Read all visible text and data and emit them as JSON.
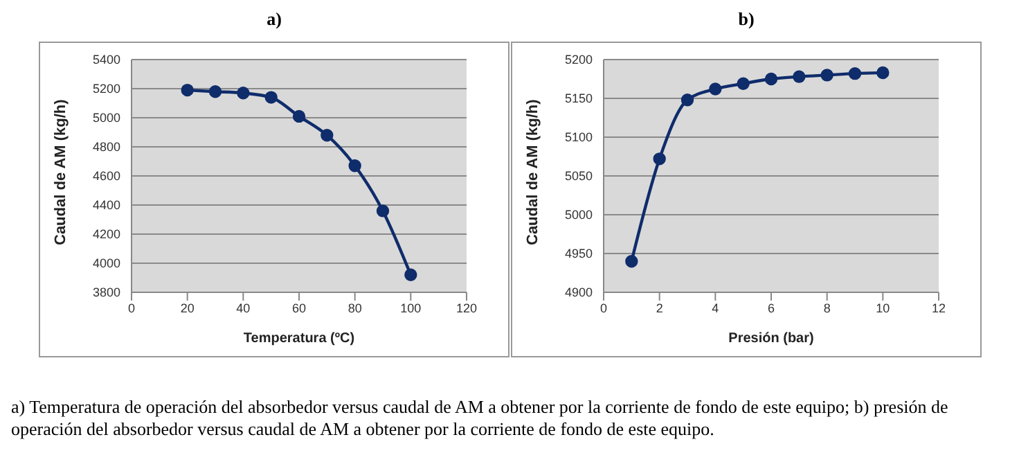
{
  "chart_data": [
    {
      "type": "line",
      "title": "a)",
      "xlabel": "Temperatura (ºC)",
      "ylabel": "Caudal de AM (kg/h)",
      "x": [
        20,
        30,
        40,
        50,
        60,
        70,
        80,
        90,
        100
      ],
      "series": [
        {
          "color": "#0f2c6b",
          "values": [
            5190,
            5180,
            5170,
            5140,
            5010,
            4880,
            4670,
            4360,
            3920
          ]
        }
      ],
      "xlim": [
        0,
        120
      ],
      "xticks": [
        0,
        20,
        40,
        60,
        80,
        100,
        120
      ],
      "ylim": [
        3800,
        5400
      ],
      "yticks": [
        3800,
        4000,
        4200,
        4400,
        4600,
        4800,
        5000,
        5200,
        5400
      ],
      "grid": "y",
      "marker": "circle",
      "line_style": "solid"
    },
    {
      "type": "line",
      "title": "b)",
      "xlabel": "Presión (bar)",
      "ylabel": "Caudal de AM (kg/h)",
      "x": [
        1,
        2,
        3,
        4,
        5,
        6,
        7,
        8,
        9,
        10
      ],
      "series": [
        {
          "color": "#0f2c6b",
          "values": [
            4940,
            5072,
            5148,
            5162,
            5169,
            5175,
            5178,
            5180,
            5182,
            5183
          ]
        }
      ],
      "xlim": [
        0,
        12
      ],
      "xticks": [
        0,
        2,
        4,
        6,
        8,
        10,
        12
      ],
      "ylim": [
        4900,
        5200
      ],
      "yticks": [
        4900,
        4950,
        5000,
        5050,
        5100,
        5150,
        5200
      ],
      "grid": "y",
      "marker": "circle",
      "line_style": "solid",
      "annotations": [
        "a) Temperatura de operación del absorbedor versus caudal de AM a obtener por la corriente de fondo de este equipo; b) presión de operación del absorbedor versus caudal de AM a obtener por la corriente de fondo de este equipo."
      ]
    }
  ]
}
